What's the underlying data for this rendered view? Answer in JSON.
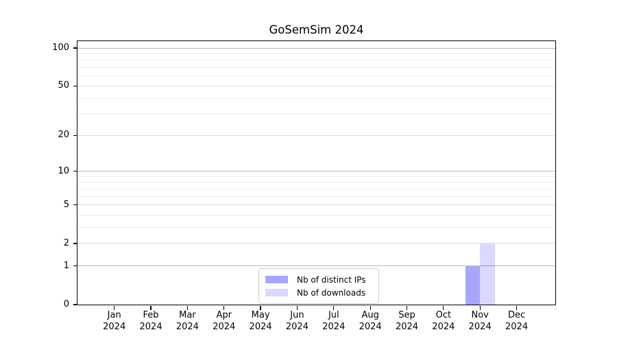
{
  "chart_data": {
    "type": "bar",
    "title": "GoSemSim 2024",
    "categories": [
      "Jan 2024",
      "Feb 2024",
      "Mar 2024",
      "Apr 2024",
      "May 2024",
      "Jun 2024",
      "Jul 2024",
      "Aug 2024",
      "Sep 2024",
      "Oct 2024",
      "Nov 2024",
      "Dec 2024"
    ],
    "series": [
      {
        "name": "Nb of distinct IPs",
        "color": "rgba(0,0,255,0.35)",
        "values": [
          0,
          0,
          0,
          0,
          0,
          0,
          0,
          0,
          0,
          0,
          1,
          0
        ]
      },
      {
        "name": "Nb of downloads",
        "color": "rgba(0,0,255,0.15)",
        "values": [
          0,
          0,
          0,
          0,
          0,
          0,
          0,
          0,
          0,
          0,
          2,
          0
        ]
      }
    ],
    "xlabel": "",
    "ylabel": "",
    "yscale": "log1p",
    "ylim": [
      0,
      113.3
    ],
    "yticks_major": [
      0,
      1,
      2,
      5,
      10,
      20,
      50,
      100
    ],
    "yticks_minor": [
      3,
      4,
      6,
      7,
      8,
      9,
      30,
      40,
      60,
      70,
      80,
      90
    ],
    "emphasized_gridlines": [
      1,
      10,
      100
    ],
    "grid": "horizontal",
    "legend_position": "lower center"
  },
  "colors": {
    "background": "#ffffff",
    "spine": "#000000",
    "text": "#000000",
    "grid_emphasized": "#bbbbbb",
    "grid_major": "#dfdfdf",
    "grid_minor": "#ececec",
    "legend_border": "#cccccc"
  }
}
